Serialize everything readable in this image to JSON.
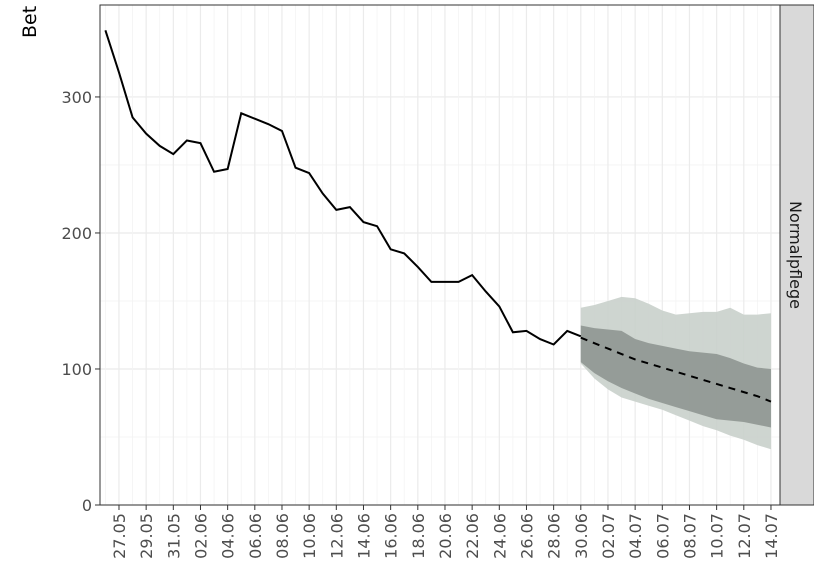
{
  "chart_data": {
    "type": "line",
    "ylabel": "Bet",
    "facet": "Normalpflege",
    "categories": [
      null,
      "27.05",
      null,
      "29.05",
      null,
      "31.05",
      null,
      "02.06",
      null,
      "04.06",
      null,
      "06.06",
      null,
      "08.06",
      null,
      "10.06",
      null,
      "12.06",
      null,
      "14.06",
      null,
      "16.06",
      null,
      "18.06",
      null,
      "20.06",
      null,
      "22.06",
      null,
      "24.06",
      null,
      "26.06",
      null,
      "28.06",
      null,
      "30.06",
      null,
      "02.07",
      null,
      "04.07",
      null,
      "06.07",
      null,
      "08.07",
      null,
      "10.07",
      null,
      "12.07",
      null,
      "14.07"
    ],
    "series": [
      {
        "color": "#000000",
        "dashed": false,
        "values": [
          349,
          318,
          285,
          273,
          264,
          258,
          268,
          266,
          245,
          247,
          288,
          284,
          280,
          275,
          248,
          244,
          229,
          217,
          219,
          208,
          205,
          188,
          185,
          175,
          164,
          164,
          164,
          169,
          157,
          146,
          127,
          128,
          122,
          118,
          128,
          124,
          null,
          null,
          null,
          null,
          null,
          null,
          null,
          null,
          null,
          null,
          null,
          null,
          null,
          null
        ]
      },
      {
        "color": "#000000",
        "dashed": true,
        "values": [
          null,
          null,
          null,
          null,
          null,
          null,
          null,
          null,
          null,
          null,
          null,
          null,
          null,
          null,
          null,
          null,
          null,
          null,
          null,
          null,
          null,
          null,
          null,
          null,
          null,
          null,
          null,
          null,
          null,
          null,
          null,
          null,
          null,
          null,
          null,
          123,
          119,
          115,
          111,
          107,
          104,
          101,
          98,
          95,
          92,
          89,
          86,
          83,
          80,
          76
        ]
      }
    ],
    "bands": [
      {
        "color": "#c9d0cb",
        "lower": [
          null,
          null,
          null,
          null,
          null,
          null,
          null,
          null,
          null,
          null,
          null,
          null,
          null,
          null,
          null,
          null,
          null,
          null,
          null,
          null,
          null,
          null,
          null,
          null,
          null,
          null,
          null,
          null,
          null,
          null,
          null,
          null,
          null,
          null,
          null,
          104,
          93,
          85,
          79,
          76,
          73,
          70,
          66,
          62,
          58,
          55,
          51,
          48,
          44,
          41
        ],
        "upper": [
          null,
          null,
          null,
          null,
          null,
          null,
          null,
          null,
          null,
          null,
          null,
          null,
          null,
          null,
          null,
          null,
          null,
          null,
          null,
          null,
          null,
          null,
          null,
          null,
          null,
          null,
          null,
          null,
          null,
          null,
          null,
          null,
          null,
          null,
          null,
          145,
          147,
          150,
          153,
          152,
          148,
          143,
          140,
          141,
          142,
          142,
          145,
          140,
          140,
          141
        ]
      },
      {
        "color": "#8f9691",
        "lower": [
          null,
          null,
          null,
          null,
          null,
          null,
          null,
          null,
          null,
          null,
          null,
          null,
          null,
          null,
          null,
          null,
          null,
          null,
          null,
          null,
          null,
          null,
          null,
          null,
          null,
          null,
          null,
          null,
          null,
          null,
          null,
          null,
          null,
          null,
          null,
          105,
          97,
          91,
          86,
          82,
          78,
          75,
          72,
          69,
          66,
          63,
          62,
          61,
          59,
          57
        ],
        "upper": [
          null,
          null,
          null,
          null,
          null,
          null,
          null,
          null,
          null,
          null,
          null,
          null,
          null,
          null,
          null,
          null,
          null,
          null,
          null,
          null,
          null,
          null,
          null,
          null,
          null,
          null,
          null,
          null,
          null,
          null,
          null,
          null,
          null,
          null,
          null,
          132,
          130,
          129,
          128,
          122,
          119,
          117,
          115,
          113,
          112,
          111,
          108,
          104,
          101,
          100
        ]
      }
    ],
    "ylim": [
      0,
      367.6
    ],
    "yticks": [
      0,
      100,
      200,
      300
    ],
    "grid": true
  }
}
